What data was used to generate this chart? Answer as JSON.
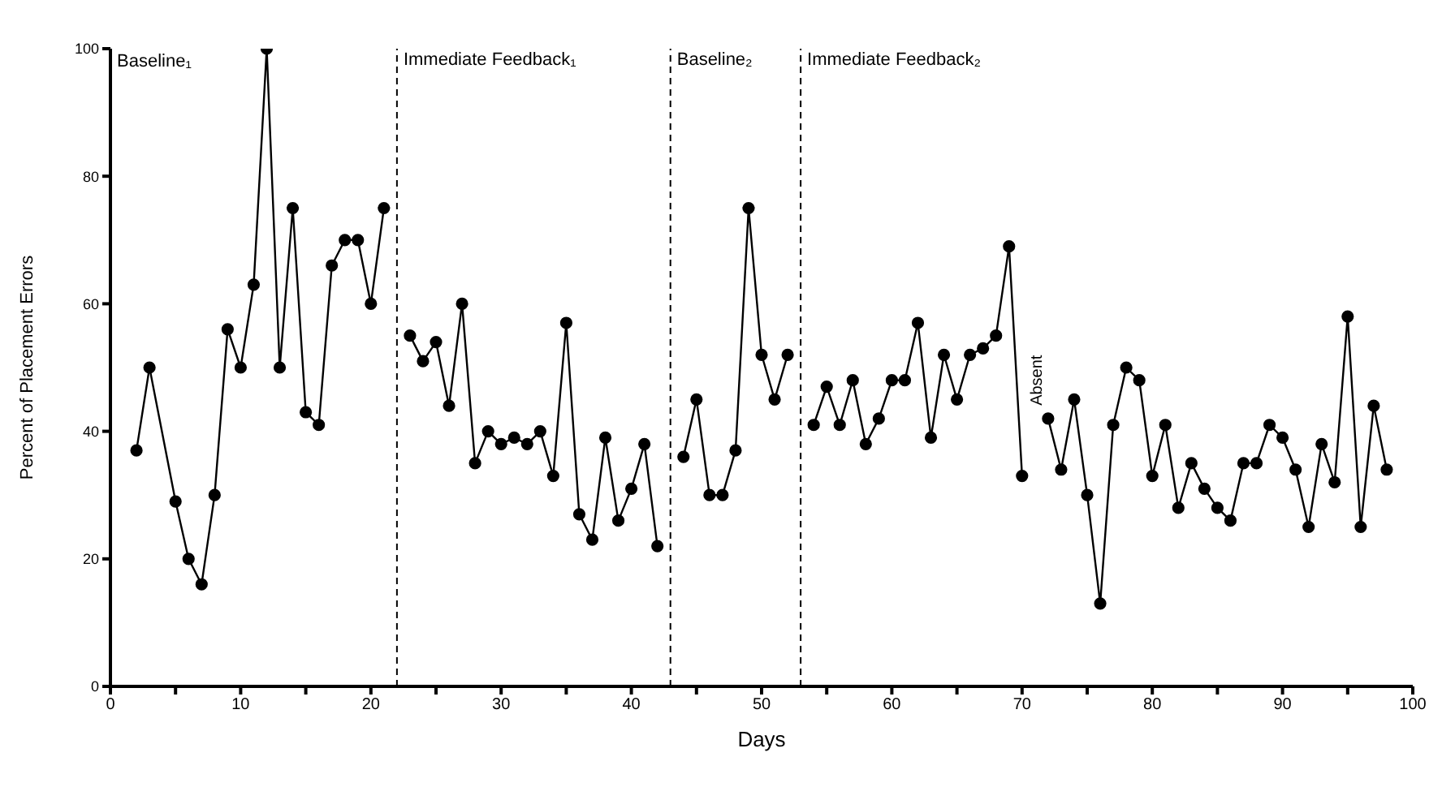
{
  "chart_data": {
    "type": "line",
    "xlabel": "Days",
    "ylabel": "Percent of Placement Errors",
    "x": [
      2,
      3,
      5,
      6,
      7,
      8,
      9,
      10,
      11,
      12,
      13,
      14,
      15,
      16,
      17,
      18,
      19,
      20,
      21,
      22,
      23,
      24,
      25,
      26,
      27,
      28,
      29,
      30,
      31,
      32,
      33,
      34,
      35,
      36,
      37,
      38,
      39,
      40,
      41,
      42,
      43,
      44,
      45,
      46,
      47,
      48,
      49,
      50,
      51,
      52,
      53,
      54,
      55,
      56,
      57,
      58,
      59,
      60,
      61,
      62,
      63,
      64,
      65,
      66,
      67,
      68,
      69,
      70,
      71,
      72,
      73,
      74,
      75,
      76,
      77,
      78,
      79,
      80,
      81,
      82,
      83,
      84,
      85,
      86,
      87,
      88,
      89,
      90,
      91,
      92,
      93,
      94,
      95,
      96,
      97,
      98
    ],
    "series": [
      {
        "color": "#000000",
        "values": [
          37,
          50,
          29,
          20,
          16,
          30,
          56,
          50,
          63,
          100,
          50,
          75,
          43,
          41,
          66,
          70,
          70,
          60,
          75,
          null,
          55,
          51,
          54,
          44,
          60,
          35,
          40,
          38,
          39,
          38,
          40,
          33,
          57,
          27,
          23,
          39,
          26,
          31,
          38,
          22,
          null,
          36,
          45,
          30,
          30,
          37,
          75,
          52,
          45,
          52,
          null,
          41,
          47,
          41,
          48,
          38,
          42,
          48,
          48,
          57,
          39,
          52,
          45,
          52,
          53,
          55,
          69,
          33,
          null,
          42,
          34,
          45,
          30,
          13,
          41,
          50,
          48,
          33,
          41,
          28,
          35,
          31,
          28,
          26,
          35,
          35,
          41,
          39,
          34,
          25,
          38,
          32,
          58,
          25,
          44,
          34
        ]
      }
    ],
    "xlim": [
      0,
      100
    ],
    "xticks": [
      0,
      {
        "value": 5,
        "label": null
      },
      10,
      {
        "value": 15,
        "label": null
      },
      20,
      {
        "value": 25,
        "label": null
      },
      30,
      {
        "value": 35,
        "label": null
      },
      40,
      {
        "value": 45,
        "label": null
      },
      50,
      {
        "value": 55,
        "label": null
      },
      60,
      {
        "value": 65,
        "label": null
      },
      70,
      {
        "value": 75,
        "label": null
      },
      80,
      {
        "value": 85,
        "label": null
      },
      90,
      {
        "value": 95,
        "label": null
      },
      100
    ],
    "ylim": [
      0,
      100
    ],
    "yticks": [
      0,
      20,
      40,
      60,
      80,
      100
    ],
    "marker": "circle",
    "line_style": "solid",
    "ref_lines": [
      {
        "axis": "x",
        "value": 22,
        "label": "Immediate Feedback₁",
        "line_style": "dashed",
        "color": "#000000"
      },
      {
        "axis": "x",
        "value": 43,
        "label": "Baseline₂",
        "line_style": "dashed",
        "color": "#000000"
      },
      {
        "axis": "x",
        "value": 53,
        "label": "Immediate Feedback₂",
        "line_style": "dashed",
        "color": "#000000"
      }
    ],
    "annotations": [
      "Baseline₁",
      "Absent"
    ]
  }
}
